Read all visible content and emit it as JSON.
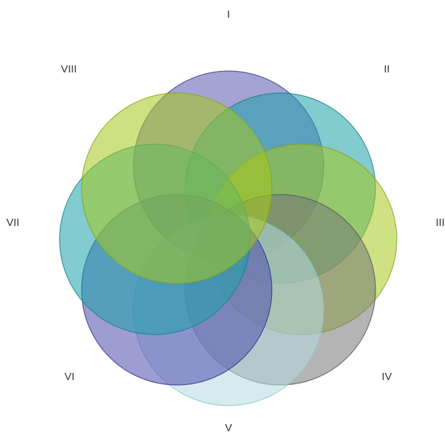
{
  "diagram": {
    "type": "venn",
    "sets": [
      {
        "id": "set-i",
        "label": "I",
        "fill": "#5b58b0",
        "stroke": "#3b3a8f"
      },
      {
        "id": "set-ii",
        "label": "II",
        "fill": "#1ba0a8",
        "stroke": "#137f86"
      },
      {
        "id": "set-iii",
        "label": "III",
        "fill": "#a8c81e",
        "stroke": "#86a314"
      },
      {
        "id": "set-iv",
        "label": "IV",
        "fill": "#767676",
        "stroke": "#555555"
      },
      {
        "id": "set-v",
        "label": "V",
        "fill": "#b6dbe1",
        "stroke": "#8cc4cc"
      },
      {
        "id": "set-vi",
        "label": "VI",
        "fill": "#4d4aae",
        "stroke": "#2f2d8a"
      },
      {
        "id": "set-vii",
        "label": "VII",
        "fill": "#1aa2ac",
        "stroke": "#128189"
      },
      {
        "id": "set-viii",
        "label": "VIII",
        "fill": "#a6c81c",
        "stroke": "#86a514"
      }
    ]
  }
}
